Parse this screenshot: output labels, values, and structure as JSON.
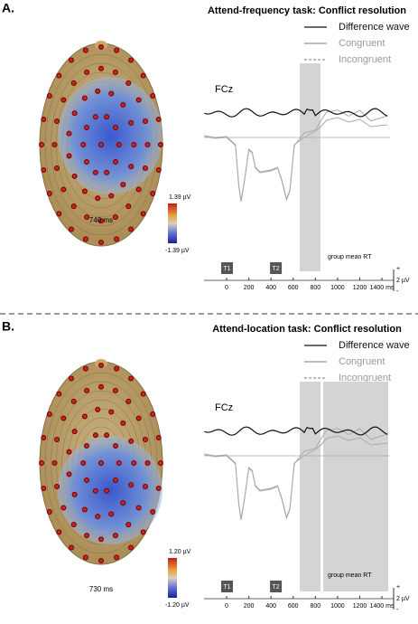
{
  "panels": [
    {
      "label": "A.",
      "title": "Attend-frequency task: Conflict resolution",
      "legend": [
        "Difference wave",
        "Congruent",
        "Incongruent"
      ],
      "electrode": "FCz",
      "time": "740 ms",
      "colorbar": {
        "max": "1.39 µV",
        "min": "-1.39 µV"
      },
      "markers": [
        "T1",
        "T2"
      ],
      "rt_label": "group mean RT",
      "xticks": [
        0,
        200,
        400,
        600,
        800,
        1000,
        1200,
        {
          "value": 1400,
          "label": "1400 ms"
        }
      ],
      "scale": "2 µV",
      "plus": "+",
      "minus": "-"
    },
    {
      "label": "B.",
      "title": "Attend-location task: Conflict resolution",
      "legend": [
        "Difference wave",
        "Congruent",
        "Incongruent"
      ],
      "electrode": "FCz",
      "time": "730 ms",
      "colorbar": {
        "max": "1.20 µV",
        "min": "-1.20 µV"
      },
      "markers": [
        "T1",
        "T2"
      ],
      "rt_label": "group mean RT",
      "xticks": [
        0,
        200,
        400,
        600,
        800,
        1000,
        1200,
        {
          "value": 1400,
          "label": "1400 ms"
        }
      ],
      "scale": "2 µV",
      "plus": "+",
      "minus": "-"
    }
  ]
}
